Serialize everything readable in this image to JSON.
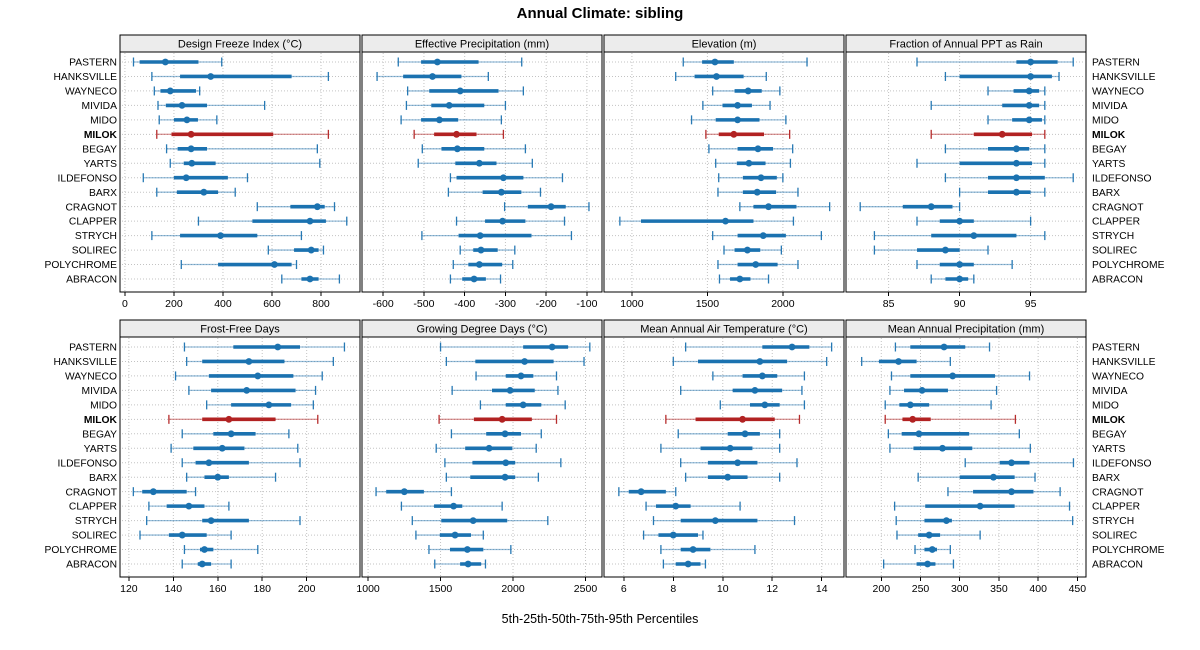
{
  "title": "Annual Climate: sibling",
  "caption": "5th-25th-50th-75th-95th Percentiles",
  "colors": {
    "series": "#1b72b0",
    "highlight": "#b22222",
    "header_bg": "#ececec",
    "panel_border": "#000000",
    "grid": "#c3c3c3"
  },
  "chart_data": {
    "type": "percentile-dotplot",
    "percentile_labels": [
      "5th",
      "25th",
      "50th",
      "75th",
      "95th"
    ],
    "sites": [
      "PASTERN",
      "HANKSVILLE",
      "WAYNECO",
      "MIVIDA",
      "MIDO",
      "MILOK",
      "BEGAY",
      "YARTS",
      "ILDEFONSO",
      "BARX",
      "CRAGNOT",
      "CLAPPER",
      "STRYCH",
      "SOLIREC",
      "POLYCHROME",
      "ABRACON"
    ],
    "highlight_site": "MILOK",
    "layout_hint": "2 rows x 4 columns of panels; site labels on both left and right; x-axis labels below each panel row; dotted grid",
    "panels": [
      {
        "title": "Design Freeze Index (°C)",
        "xlim": [
          -20,
          959
        ],
        "ticks": [
          0,
          200,
          400,
          600,
          800
        ],
        "values": [
          [
            35,
            60,
            165,
            300,
            395
          ],
          [
            110,
            225,
            350,
            680,
            830
          ],
          [
            120,
            145,
            185,
            290,
            305
          ],
          [
            135,
            167,
            233,
            335,
            570
          ],
          [
            140,
            200,
            253,
            298,
            375
          ],
          [
            130,
            190,
            270,
            605,
            830
          ],
          [
            170,
            215,
            270,
            335,
            785
          ],
          [
            185,
            240,
            273,
            370,
            795
          ],
          [
            75,
            200,
            250,
            420,
            500
          ],
          [
            130,
            212,
            322,
            380,
            450
          ],
          [
            540,
            675,
            785,
            815,
            855
          ],
          [
            300,
            520,
            755,
            820,
            905
          ],
          [
            110,
            225,
            390,
            540,
            720
          ],
          [
            585,
            690,
            760,
            790,
            810
          ],
          [
            230,
            380,
            610,
            680,
            700
          ],
          [
            640,
            720,
            755,
            790,
            875
          ]
        ]
      },
      {
        "title": "Effective Precipitation (mm)",
        "xlim": [
          -652,
          -63
        ],
        "ticks": [
          -600,
          -500,
          -400,
          -300,
          -200,
          -100
        ],
        "values": [
          [
            -563,
            -507,
            -467,
            -366,
            -260
          ],
          [
            -615,
            -551,
            -479,
            -408,
            -342
          ],
          [
            -540,
            -487,
            -411,
            -317,
            -256
          ],
          [
            -543,
            -482,
            -438,
            -352,
            -300
          ],
          [
            -556,
            -507,
            -462,
            -416,
            -310
          ],
          [
            -524,
            -475,
            -420,
            -371,
            -305
          ],
          [
            -504,
            -457,
            -418,
            -352,
            -251
          ],
          [
            -514,
            -423,
            -364,
            -322,
            -234
          ],
          [
            -435,
            -420,
            -305,
            -256,
            -160
          ],
          [
            -440,
            -356,
            -310,
            -261,
            -214
          ],
          [
            -302,
            -245,
            -188,
            -152,
            -95
          ],
          [
            -420,
            -350,
            -307,
            -251,
            -155
          ],
          [
            -505,
            -415,
            -362,
            -236,
            -138
          ],
          [
            -411,
            -379,
            -360,
            -319,
            -277
          ],
          [
            -428,
            -391,
            -364,
            -308,
            -282
          ],
          [
            -435,
            -406,
            -377,
            -348,
            -312
          ]
        ]
      },
      {
        "title": "Elevation (m)",
        "xlim": [
          815,
          2405
        ],
        "ticks": [
          1000,
          1500,
          2000
        ],
        "values": [
          [
            1340,
            1465,
            1550,
            1675,
            2160
          ],
          [
            1290,
            1415,
            1560,
            1740,
            1890
          ],
          [
            1535,
            1680,
            1770,
            1860,
            1980
          ],
          [
            1470,
            1600,
            1700,
            1795,
            1915
          ],
          [
            1395,
            1555,
            1700,
            1845,
            2020
          ],
          [
            1490,
            1575,
            1675,
            1875,
            2045
          ],
          [
            1510,
            1700,
            1835,
            1935,
            2065
          ],
          [
            1555,
            1695,
            1775,
            1885,
            2050
          ],
          [
            1575,
            1735,
            1855,
            1960,
            2000
          ],
          [
            1570,
            1735,
            1830,
            1955,
            2100
          ],
          [
            1715,
            1805,
            1905,
            2090,
            2310
          ],
          [
            920,
            1060,
            1620,
            1805,
            2070
          ],
          [
            1535,
            1700,
            1870,
            2020,
            2255
          ],
          [
            1610,
            1680,
            1765,
            1850,
            1990
          ],
          [
            1570,
            1700,
            1820,
            1965,
            2100
          ],
          [
            1580,
            1650,
            1715,
            1785,
            1905
          ]
        ]
      },
      {
        "title": "Fraction of Annual PPT as Rain",
        "xlim": [
          82,
          98.9
        ],
        "ticks": [
          85,
          90,
          95
        ],
        "values": [
          [
            87,
            94,
            95,
            96.9,
            98
          ],
          [
            89,
            90,
            95,
            96.5,
            97
          ],
          [
            92,
            93.8,
            94.9,
            95.6,
            96
          ],
          [
            88,
            93,
            94.9,
            95.6,
            96
          ],
          [
            92,
            93.7,
            94.9,
            95.8,
            96
          ],
          [
            88,
            91,
            93,
            95.1,
            96
          ],
          [
            89,
            92,
            94,
            94.9,
            96
          ],
          [
            87,
            90,
            94,
            95.1,
            96
          ],
          [
            89,
            92,
            94,
            96,
            98
          ],
          [
            90,
            92,
            94,
            95,
            96
          ],
          [
            83,
            86,
            88,
            89.5,
            90
          ],
          [
            87,
            88.6,
            90,
            91,
            95
          ],
          [
            84,
            88,
            91,
            94,
            96
          ],
          [
            84,
            87,
            89,
            90,
            92
          ],
          [
            87,
            88.6,
            90,
            91,
            93.7
          ],
          [
            88,
            89,
            90,
            90.6,
            91
          ]
        ]
      },
      {
        "title": "Frost-Free Days",
        "xlim": [
          116,
          224
        ],
        "ticks": [
          120,
          140,
          160,
          180,
          200
        ],
        "values": [
          [
            145,
            167,
            187,
            197,
            217
          ],
          [
            146,
            153,
            174,
            190,
            212
          ],
          [
            141,
            156,
            178,
            194,
            207
          ],
          [
            147,
            157,
            173,
            195,
            204
          ],
          [
            155,
            166,
            183,
            193,
            203
          ],
          [
            138,
            153,
            165,
            186,
            205
          ],
          [
            144,
            158,
            166,
            177,
            192
          ],
          [
            139,
            149,
            162,
            172,
            196
          ],
          [
            144,
            150,
            156,
            174,
            197
          ],
          [
            146,
            154,
            160,
            165,
            186
          ],
          [
            122,
            126,
            131,
            146,
            150
          ],
          [
            129,
            137,
            147,
            154,
            165
          ],
          [
            128,
            153,
            157,
            174,
            197
          ],
          [
            125,
            138,
            144,
            155,
            166
          ],
          [
            145,
            152,
            154,
            158,
            178
          ],
          [
            144,
            151,
            153,
            157,
            166
          ]
        ]
      },
      {
        "title": "Growing Degree Days (°C)",
        "xlim": [
          958,
          2614
        ],
        "ticks": [
          1000,
          1500,
          2000,
          2500
        ],
        "values": [
          [
            1500,
            2070,
            2270,
            2380,
            2530
          ],
          [
            1540,
            1740,
            2080,
            2280,
            2490
          ],
          [
            1745,
            1950,
            2055,
            2140,
            2300
          ],
          [
            1580,
            1855,
            1980,
            2150,
            2310
          ],
          [
            1775,
            1950,
            2070,
            2195,
            2360
          ],
          [
            1490,
            1730,
            1925,
            2130,
            2300
          ],
          [
            1575,
            1815,
            1945,
            2055,
            2195
          ],
          [
            1470,
            1670,
            1835,
            1995,
            2160
          ],
          [
            1530,
            1720,
            1950,
            2015,
            2330
          ],
          [
            1540,
            1705,
            1945,
            2015,
            2175
          ],
          [
            1055,
            1125,
            1250,
            1385,
            1575
          ],
          [
            1230,
            1455,
            1590,
            1650,
            1925
          ],
          [
            1305,
            1505,
            1725,
            1960,
            2240
          ],
          [
            1330,
            1495,
            1600,
            1710,
            1795
          ],
          [
            1420,
            1565,
            1685,
            1795,
            1985
          ],
          [
            1460,
            1635,
            1690,
            1780,
            1810
          ]
        ]
      },
      {
        "title": "Mean Annual Air Temperature (°C)",
        "xlim": [
          5.2,
          14.9
        ],
        "ticks": [
          6,
          8,
          10,
          12,
          14
        ],
        "values": [
          [
            8.5,
            11.6,
            12.8,
            13.5,
            14.4
          ],
          [
            8.0,
            9.0,
            11.5,
            12.6,
            14.2
          ],
          [
            9.6,
            10.8,
            11.6,
            12.2,
            13.3
          ],
          [
            8.3,
            10.4,
            11.3,
            12.4,
            13.2
          ],
          [
            9.9,
            11.1,
            11.7,
            12.3,
            13.3
          ],
          [
            7.7,
            8.9,
            10.8,
            12.1,
            13.1
          ],
          [
            8.2,
            10.2,
            10.9,
            11.5,
            12.3
          ],
          [
            7.5,
            9.1,
            10.3,
            11.2,
            12.3
          ],
          [
            8.3,
            9.4,
            10.6,
            11.4,
            13.0
          ],
          [
            8.5,
            9.4,
            10.2,
            11.0,
            12.3
          ],
          [
            5.8,
            6.2,
            6.7,
            7.7,
            8.1
          ],
          [
            6.9,
            7.3,
            8.1,
            8.7,
            10.7
          ],
          [
            7.2,
            8.3,
            9.7,
            11.4,
            12.9
          ],
          [
            6.8,
            7.4,
            8.0,
            9.0,
            9.2
          ],
          [
            7.5,
            8.3,
            8.8,
            9.5,
            11.3
          ],
          [
            7.6,
            8.1,
            8.6,
            9.1,
            9.3
          ]
        ]
      },
      {
        "title": "Mean Annual Precipitation (mm)",
        "xlim": [
          155,
          461
        ],
        "ticks": [
          200,
          250,
          300,
          350,
          400,
          450
        ],
        "values": [
          [
            218,
            237,
            280,
            307,
            338
          ],
          [
            175,
            197,
            222,
            245,
            288
          ],
          [
            213,
            237,
            291,
            345,
            389
          ],
          [
            211,
            229,
            252,
            285,
            347
          ],
          [
            205,
            223,
            237,
            261,
            340
          ],
          [
            205,
            227,
            240,
            263,
            371
          ],
          [
            209,
            226,
            248,
            312,
            376
          ],
          [
            211,
            241,
            278,
            316,
            390
          ],
          [
            307,
            351,
            366,
            389,
            445
          ],
          [
            247,
            300,
            343,
            370,
            396
          ],
          [
            285,
            317,
            366,
            394,
            428
          ],
          [
            217,
            256,
            326,
            370,
            440
          ],
          [
            219,
            255,
            283,
            290,
            444
          ],
          [
            220,
            247,
            261,
            275,
            326
          ],
          [
            243,
            255,
            265,
            271,
            288
          ],
          [
            203,
            245,
            259,
            269,
            292
          ]
        ]
      }
    ]
  }
}
